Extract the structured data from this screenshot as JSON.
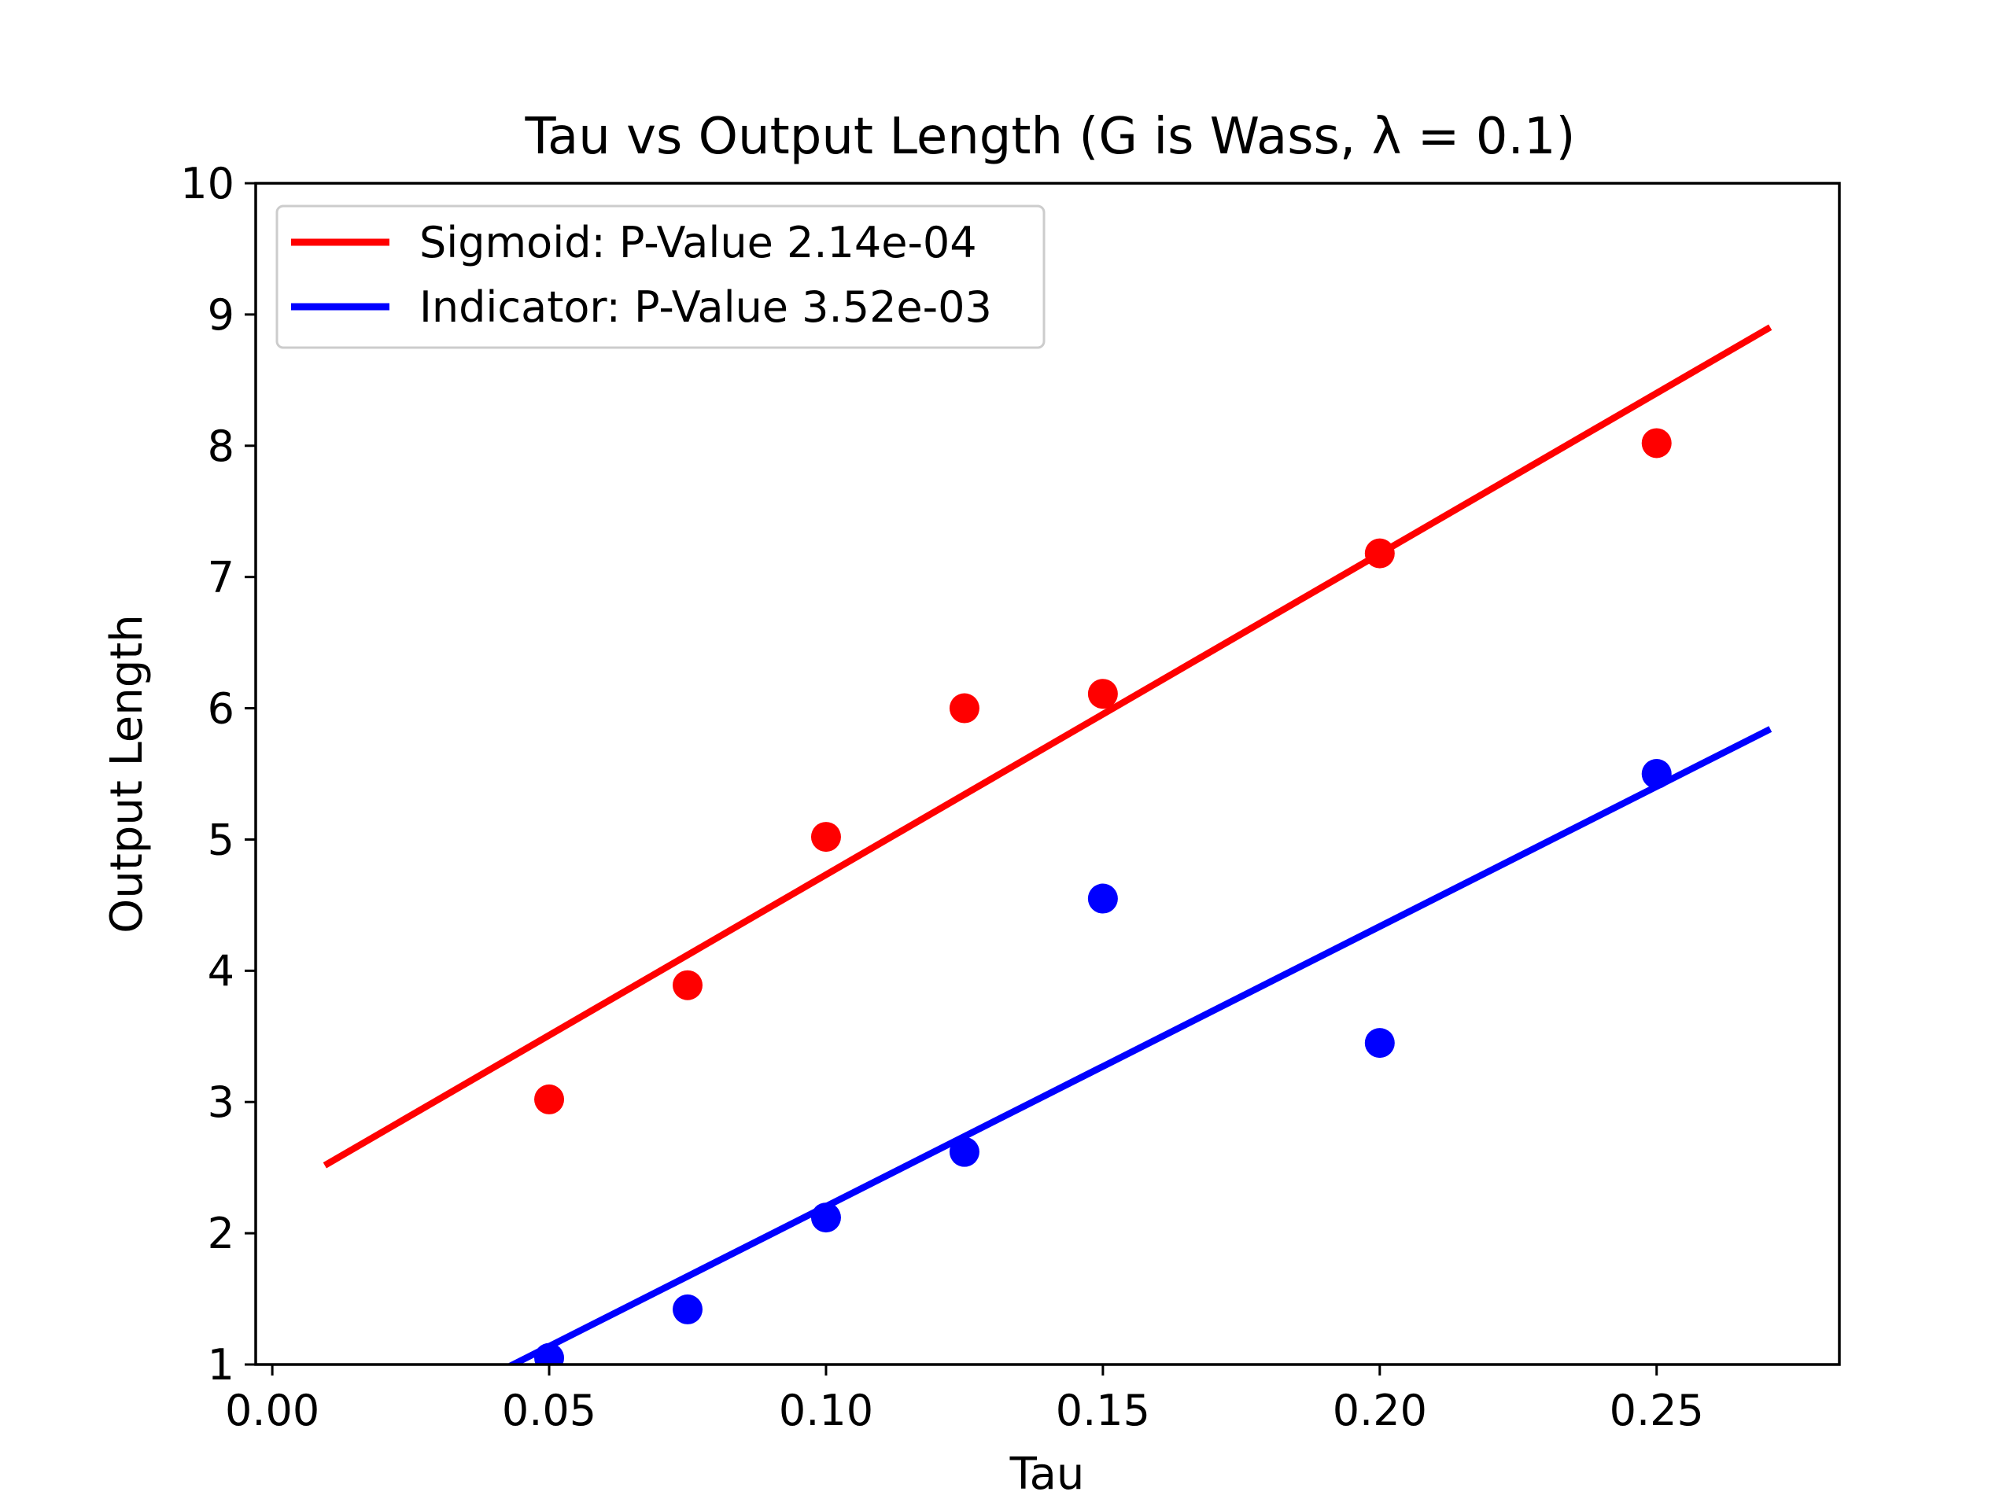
{
  "chart_data": {
    "type": "scatter",
    "title": "Tau vs Output Length (G is Wass, λ = 0.1)",
    "xlabel": "Tau",
    "ylabel": "Output Length",
    "xlim": [
      -0.003,
      0.283
    ],
    "ylim": [
      1,
      10
    ],
    "x_ticks": [
      "0.00",
      "0.05",
      "0.10",
      "0.15",
      "0.20",
      "0.25"
    ],
    "y_ticks": [
      "1",
      "2",
      "3",
      "4",
      "5",
      "6",
      "7",
      "8",
      "9",
      "10"
    ],
    "grid": false,
    "legend_position": "top-left",
    "series": [
      {
        "name": "Sigmoid: P-Value 2.14e-04",
        "color": "#ff0000",
        "points": [
          {
            "x": 0.05,
            "y": 3.02
          },
          {
            "x": 0.075,
            "y": 3.89
          },
          {
            "x": 0.1,
            "y": 5.02
          },
          {
            "x": 0.125,
            "y": 6.0
          },
          {
            "x": 0.15,
            "y": 6.11
          },
          {
            "x": 0.2,
            "y": 7.18
          },
          {
            "x": 0.25,
            "y": 8.02
          }
        ],
        "fit_line": {
          "x": [
            0.01,
            0.27
          ],
          "y": [
            2.53,
            8.89
          ]
        }
      },
      {
        "name": "Indicator: P-Value 3.52e-03",
        "color": "#0000ff",
        "points": [
          {
            "x": 0.05,
            "y": 1.05
          },
          {
            "x": 0.075,
            "y": 1.42
          },
          {
            "x": 0.1,
            "y": 2.12
          },
          {
            "x": 0.125,
            "y": 2.62
          },
          {
            "x": 0.15,
            "y": 4.55
          },
          {
            "x": 0.2,
            "y": 3.45
          },
          {
            "x": 0.25,
            "y": 5.5
          }
        ],
        "fit_line": {
          "x": [
            0.0435,
            0.27
          ],
          "y": [
            1.0,
            5.83
          ]
        }
      }
    ]
  }
}
